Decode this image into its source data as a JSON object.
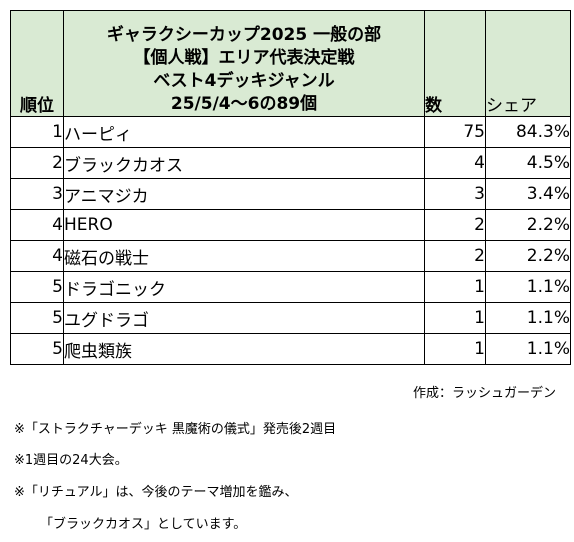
{
  "table": {
    "header": {
      "rank": "順位",
      "title_lines": [
        "ギャラクシーカップ2025 一般の部",
        "【個人戦】エリア代表決定戦",
        "ベスト4デッキジャンル",
        "25/5/4〜6の89個"
      ],
      "count": "数",
      "share": "シェア"
    },
    "rows": [
      {
        "rank": "1",
        "genre": "ハーピィ",
        "count": "75",
        "share": "84.3%"
      },
      {
        "rank": "2",
        "genre": "ブラックカオス",
        "count": "4",
        "share": "4.5%"
      },
      {
        "rank": "3",
        "genre": "アニマジカ",
        "count": "3",
        "share": "3.4%"
      },
      {
        "rank": "4",
        "genre": "HERO",
        "count": "2",
        "share": "2.2%"
      },
      {
        "rank": "4",
        "genre": "磁石の戦士",
        "count": "2",
        "share": "2.2%"
      },
      {
        "rank": "5",
        "genre": "ドラゴニック",
        "count": "1",
        "share": "1.1%"
      },
      {
        "rank": "5",
        "genre": "ユグドラゴ",
        "count": "1",
        "share": "1.1%"
      },
      {
        "rank": "5",
        "genre": "爬虫類族",
        "count": "1",
        "share": "1.1%"
      }
    ]
  },
  "credit": "作成：ラッシュガーデン",
  "notes": [
    "※「ストラクチャーデッキ 黒魔術の儀式」発売後2週目",
    "※1週目の24大会。",
    "※「リチュアル」は、今後のテーマ増加を鑑み、",
    "「ブラックカオス」としています。"
  ]
}
